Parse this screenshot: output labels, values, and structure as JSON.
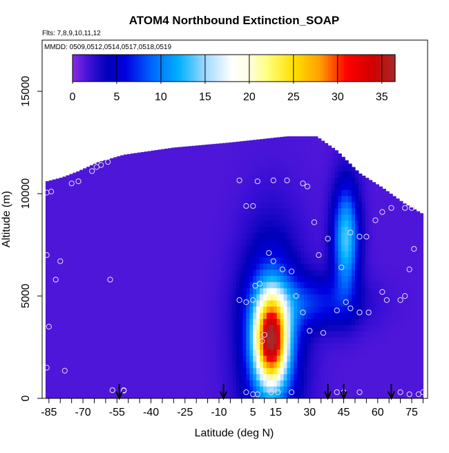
{
  "chart_data": {
    "type": "heatmap",
    "title": "ATOM4 Northbound Extinction_SOAP",
    "subtitle_flights": "Flts: 7,8,9,10,11,12",
    "subtitle_dates": "MMDD: 0509,0512,0514,0517,0518,0519",
    "xlabel": "Latitude (deg N)",
    "ylabel": "Altitude (m)",
    "xlim": [
      -88,
      82
    ],
    "ylim": [
      0,
      17500
    ],
    "x_ticks": [
      -85,
      -70,
      -55,
      -40,
      -25,
      -10,
      5,
      15,
      30,
      45,
      60,
      75
    ],
    "x_tick_labels": [
      "-85",
      "-70",
      "-55",
      "-40",
      "-25",
      "-10",
      "5",
      "15",
      "30",
      "45",
      "60",
      "75"
    ],
    "y_ticks": [
      0,
      5000,
      10000,
      15000
    ],
    "y_tick_labels": [
      "0",
      "5000",
      "10000",
      "15000"
    ],
    "colorbar": {
      "min": 0,
      "max": 36.5,
      "ticks": [
        0,
        5,
        10,
        15,
        20,
        25,
        30,
        35
      ],
      "tick_labels": [
        "0",
        "5",
        "10",
        "15",
        "20",
        "25",
        "30",
        "35"
      ],
      "stops": [
        {
          "v": 0,
          "color": "#8a2be2"
        },
        {
          "v": 2,
          "color": "#3a0fd6"
        },
        {
          "v": 4,
          "color": "#0000b8"
        },
        {
          "v": 6,
          "color": "#0000e0"
        },
        {
          "v": 9,
          "color": "#0066ff"
        },
        {
          "v": 12,
          "color": "#00b0ff"
        },
        {
          "v": 15,
          "color": "#9fd8ff"
        },
        {
          "v": 18,
          "color": "#ffffff"
        },
        {
          "v": 20,
          "color": "#fffde0"
        },
        {
          "v": 22,
          "color": "#ffff80"
        },
        {
          "v": 25,
          "color": "#ffe000"
        },
        {
          "v": 28,
          "color": "#ffa000"
        },
        {
          "v": 31,
          "color": "#ff0000"
        },
        {
          "v": 34,
          "color": "#d00000"
        },
        {
          "v": 36.5,
          "color": "#a52a2a"
        }
      ]
    },
    "flight_start_arrows_lat": [
      -54,
      -8,
      38,
      45,
      66
    ],
    "domain_boundary": [
      [
        -86,
        0
      ],
      [
        -86,
        10600
      ],
      [
        -79,
        10800
      ],
      [
        -72,
        11100
      ],
      [
        -63,
        11550
      ],
      [
        -52,
        11900
      ],
      [
        -30,
        12250
      ],
      [
        -5,
        12500
      ],
      [
        20,
        12800
      ],
      [
        33,
        12800
      ],
      [
        42,
        12100
      ],
      [
        52,
        11000
      ],
      [
        62,
        10300
      ],
      [
        72,
        9500
      ],
      [
        80,
        9000
      ],
      [
        80,
        0
      ]
    ],
    "field_features": [
      {
        "name": "background",
        "lat": 0,
        "alt": 0,
        "value": 1.5,
        "sigma_lat": 0,
        "sigma_alt": 0
      },
      {
        "name": "low-lat-plume",
        "lat": 13,
        "alt": 2900,
        "value": 27,
        "sigma_lat": 5,
        "sigma_alt": 1500
      },
      {
        "name": "plume-halo",
        "lat": 13,
        "alt": 3000,
        "value": 9,
        "sigma_lat": 9,
        "sigma_alt": 3200
      },
      {
        "name": "mid-lat-column",
        "lat": 46,
        "alt": 7800,
        "value": 12,
        "sigma_lat": 4,
        "sigma_alt": 1800
      },
      {
        "name": "mid-lat-band",
        "lat": 32,
        "alt": 4700,
        "value": 5,
        "sigma_lat": 14,
        "sigma_alt": 900
      }
    ],
    "observation_points": [
      [
        -86,
        1500
      ],
      [
        -85,
        3500
      ],
      [
        -86,
        7000
      ],
      [
        -82,
        5800
      ],
      [
        -80,
        6700
      ],
      [
        -78,
        1350
      ],
      [
        -84,
        10100
      ],
      [
        -86,
        10050
      ],
      [
        -75,
        10500
      ],
      [
        -72,
        10600
      ],
      [
        -66,
        11100
      ],
      [
        -64,
        11300
      ],
      [
        -62,
        11400
      ],
      [
        -59,
        11550
      ],
      [
        -58,
        5800
      ],
      [
        -57,
        400
      ],
      [
        -52,
        400
      ],
      [
        -1,
        10650
      ],
      [
        2,
        9400
      ],
      [
        5,
        9400
      ],
      [
        7,
        10600
      ],
      [
        14,
        10650
      ],
      [
        20,
        10650
      ],
      [
        27,
        10500
      ],
      [
        29,
        10350
      ],
      [
        32,
        8600
      ],
      [
        34,
        7000
      ],
      [
        38,
        7800
      ],
      [
        44,
        6400
      ],
      [
        48,
        8100
      ],
      [
        52,
        7900
      ],
      [
        55,
        7900
      ],
      [
        59,
        8700
      ],
      [
        62,
        9100
      ],
      [
        66,
        9300
      ],
      [
        72,
        9300
      ],
      [
        75,
        9300
      ],
      [
        76,
        7300
      ],
      [
        74,
        6300
      ],
      [
        72,
        5000
      ],
      [
        70,
        4800
      ],
      [
        64,
        4800
      ],
      [
        62,
        5200
      ],
      [
        56,
        4200
      ],
      [
        52,
        4200
      ],
      [
        48,
        4400
      ],
      [
        46,
        4700
      ],
      [
        42,
        4300
      ],
      [
        36,
        3200
      ],
      [
        30,
        3300
      ],
      [
        27,
        4200
      ],
      [
        24,
        5000
      ],
      [
        22,
        6200
      ],
      [
        18,
        6300
      ],
      [
        14,
        6700
      ],
      [
        12,
        7100
      ],
      [
        8,
        5600
      ],
      [
        6,
        5500
      ],
      [
        5,
        4800
      ],
      [
        2,
        4700
      ],
      [
        -1,
        4800
      ],
      [
        9,
        2800
      ],
      [
        10,
        3100
      ],
      [
        13,
        300
      ],
      [
        16,
        300
      ],
      [
        22,
        300
      ],
      [
        7,
        200
      ],
      [
        5,
        200
      ],
      [
        2,
        300
      ],
      [
        42,
        300
      ],
      [
        45,
        300
      ],
      [
        52,
        300
      ],
      [
        70,
        300
      ],
      [
        74,
        200
      ],
      [
        78,
        200
      ],
      [
        80,
        300
      ],
      [
        12,
        1000
      ],
      [
        -52,
        380
      ]
    ]
  }
}
